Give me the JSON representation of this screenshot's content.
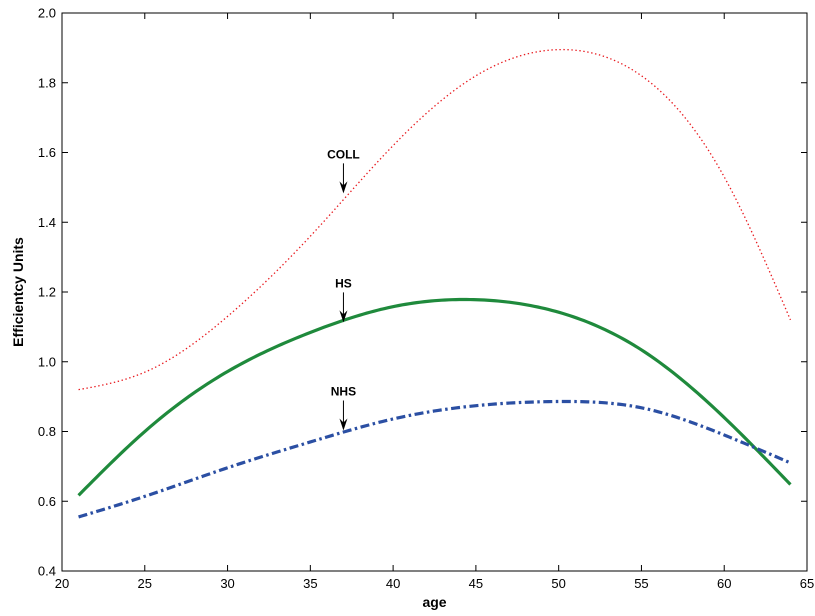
{
  "chart_data": {
    "type": "line",
    "title": "",
    "xlabel": "age",
    "ylabel": "Efficientcy Units",
    "xlim": [
      20,
      65
    ],
    "ylim": [
      0.4,
      2.0
    ],
    "xticks": [
      "20",
      "25",
      "30",
      "35",
      "40",
      "45",
      "50",
      "55",
      "60",
      "65"
    ],
    "yticks": [
      "0.4",
      "0.6",
      "0.8",
      "1.0",
      "1.2",
      "1.4",
      "1.6",
      "1.8",
      "2.0"
    ],
    "grid": false,
    "x": [
      21,
      25,
      30,
      35,
      40,
      45,
      50,
      55,
      60,
      64
    ],
    "series": [
      {
        "name": "COLL",
        "color": "#e8191e",
        "style": "dotted",
        "values": [
          0.92,
          0.97,
          1.13,
          1.36,
          1.62,
          1.82,
          1.895,
          1.82,
          1.53,
          1.12
        ]
      },
      {
        "name": "HS",
        "color": "#1f8a3c",
        "style": "solid",
        "values": [
          0.617,
          0.8,
          0.972,
          1.084,
          1.158,
          1.178,
          1.142,
          1.034,
          0.84,
          0.648
        ]
      },
      {
        "name": "NHS",
        "color": "#2b4fa3",
        "style": "dashdot",
        "values": [
          0.555,
          0.614,
          0.696,
          0.77,
          0.836,
          0.874,
          0.886,
          0.868,
          0.79,
          0.71
        ]
      }
    ],
    "annotations": [
      {
        "text": "COLL",
        "x": 37,
        "y": 1.48
      },
      {
        "text": "HS",
        "x": 37,
        "y": 1.11
      },
      {
        "text": "NHS",
        "x": 37,
        "y": 0.8
      }
    ]
  }
}
